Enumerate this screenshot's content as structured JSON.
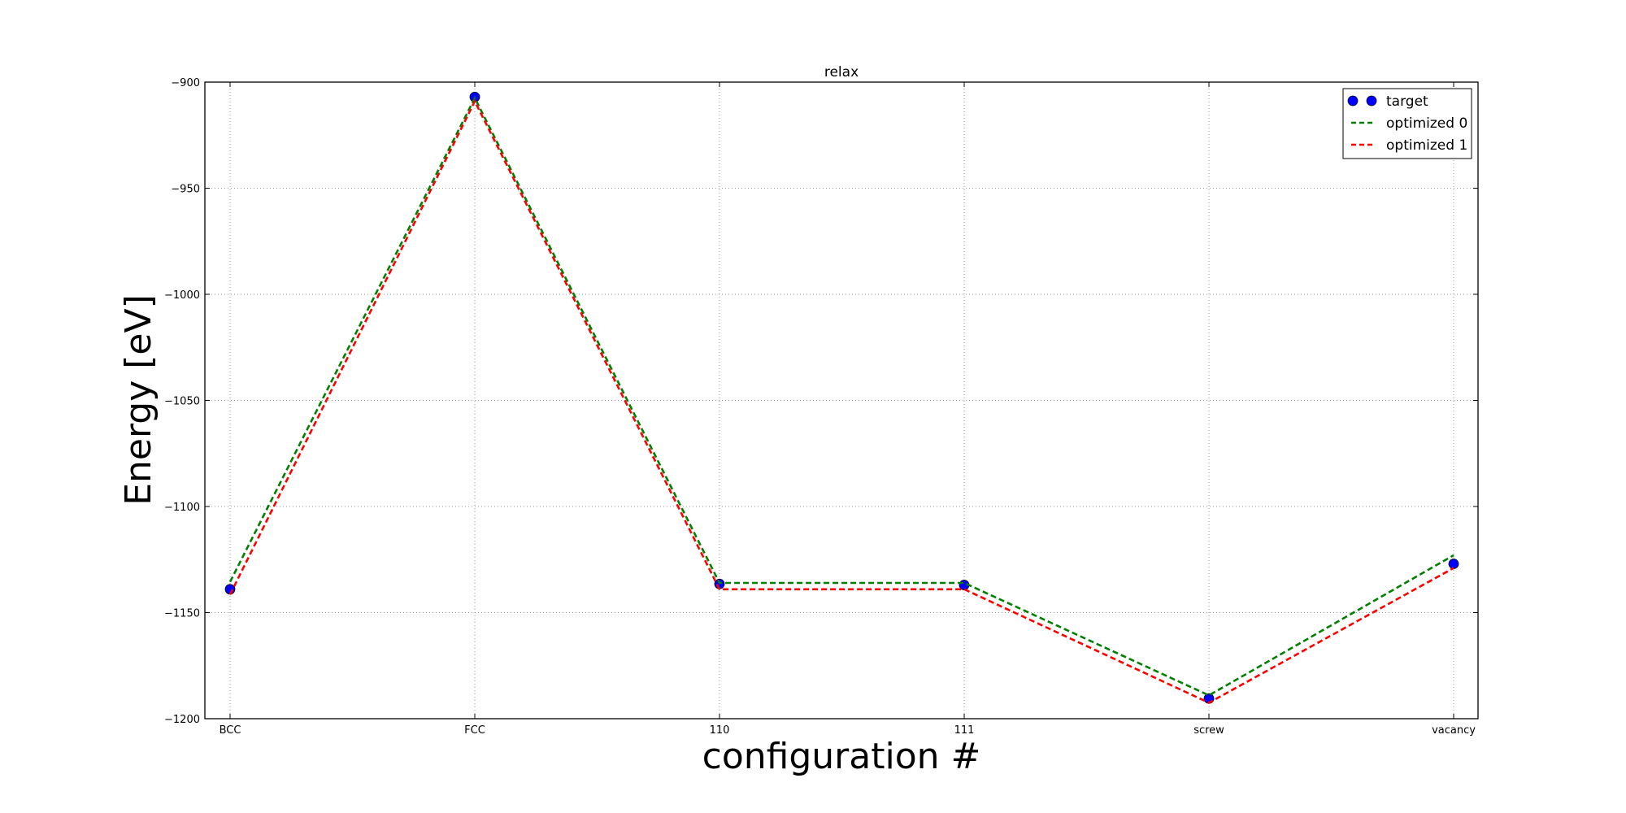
{
  "chart_data": {
    "type": "line",
    "title": "relax",
    "xlabel": "configuration #",
    "ylabel": "Energy [eV]",
    "categories": [
      "BCC",
      "FCC",
      "110",
      "111",
      "screw",
      "vacancy"
    ],
    "ylim": [
      -1200,
      -900
    ],
    "yticks": [
      -900,
      -950,
      -1000,
      -1050,
      -1100,
      -1150,
      -1200
    ],
    "ytick_labels": [
      "−900",
      "−950",
      "−1000",
      "−1050",
      "−1100",
      "−1150",
      "−1200"
    ],
    "grid": true,
    "legend_position": "top-right",
    "series": [
      {
        "name": "target",
        "style": "markers",
        "color": "#0000ff",
        "values": [
          -1139,
          -907,
          -1136.5,
          -1137,
          -1190.5,
          -1127
        ]
      },
      {
        "name": "optimized 0",
        "style": "dashed",
        "color": "#008000",
        "values": [
          -1135.5,
          -907.5,
          -1136,
          -1136,
          -1189,
          -1123
        ]
      },
      {
        "name": "optimized 1",
        "style": "dashed",
        "color": "#ff0000",
        "values": [
          -1141.5,
          -909,
          -1139,
          -1139,
          -1192.5,
          -1129
        ]
      }
    ]
  }
}
